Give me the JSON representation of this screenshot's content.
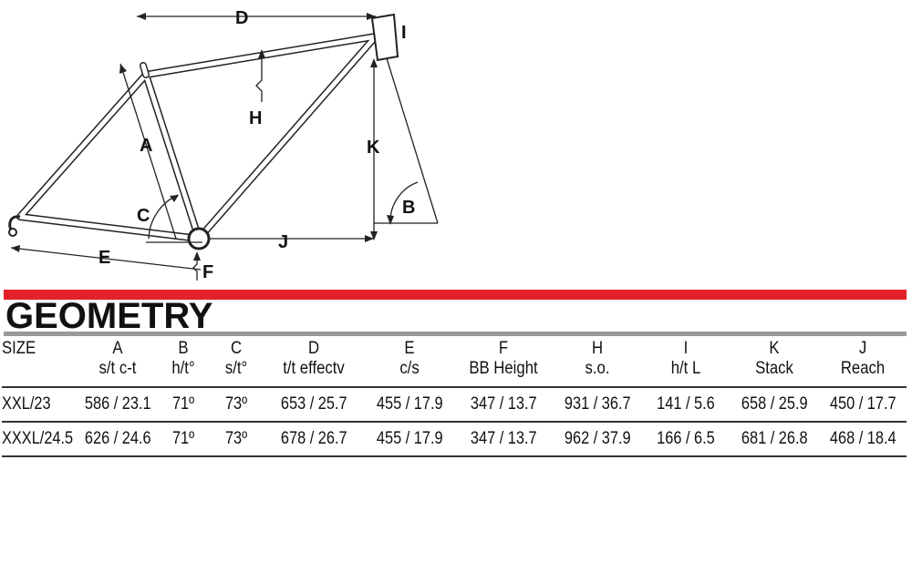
{
  "diagram": {
    "labels": {
      "A": "A",
      "B": "B",
      "C": "C",
      "D": "D",
      "E": "E",
      "F": "F",
      "H": "H",
      "I": "I",
      "J": "J",
      "K": "K"
    }
  },
  "title": "GEOMETRY",
  "colors": {
    "accent": "#e3212b",
    "rule": "#9a9a9a"
  },
  "table": {
    "headers": [
      {
        "code": "SIZE",
        "desc": ""
      },
      {
        "code": "A",
        "desc": "s/t c-t"
      },
      {
        "code": "B",
        "desc": "h/t°"
      },
      {
        "code": "C",
        "desc": "s/t°"
      },
      {
        "code": "D",
        "desc": "t/t effectv"
      },
      {
        "code": "E",
        "desc": "c/s"
      },
      {
        "code": "F",
        "desc": "BB Height"
      },
      {
        "code": "H",
        "desc": "s.o."
      },
      {
        "code": "I",
        "desc": "h/t L"
      },
      {
        "code": "K",
        "desc": "Stack"
      },
      {
        "code": "J",
        "desc": "Reach"
      }
    ],
    "rows": [
      [
        "XXL/23",
        "586 / 23.1",
        "71º",
        "73º",
        "653 / 25.7",
        "455 / 17.9",
        "347 / 13.7",
        "931 / 36.7",
        "141 / 5.6",
        "658 / 25.9",
        "450 / 17.7"
      ],
      [
        "XXXL/24.5",
        "626 / 24.6",
        "71º",
        "73º",
        "678 / 26.7",
        "455 / 17.9",
        "347 / 13.7",
        "962 / 37.9",
        "166 / 6.5",
        "681 / 26.8",
        "468 / 18.4"
      ]
    ]
  }
}
